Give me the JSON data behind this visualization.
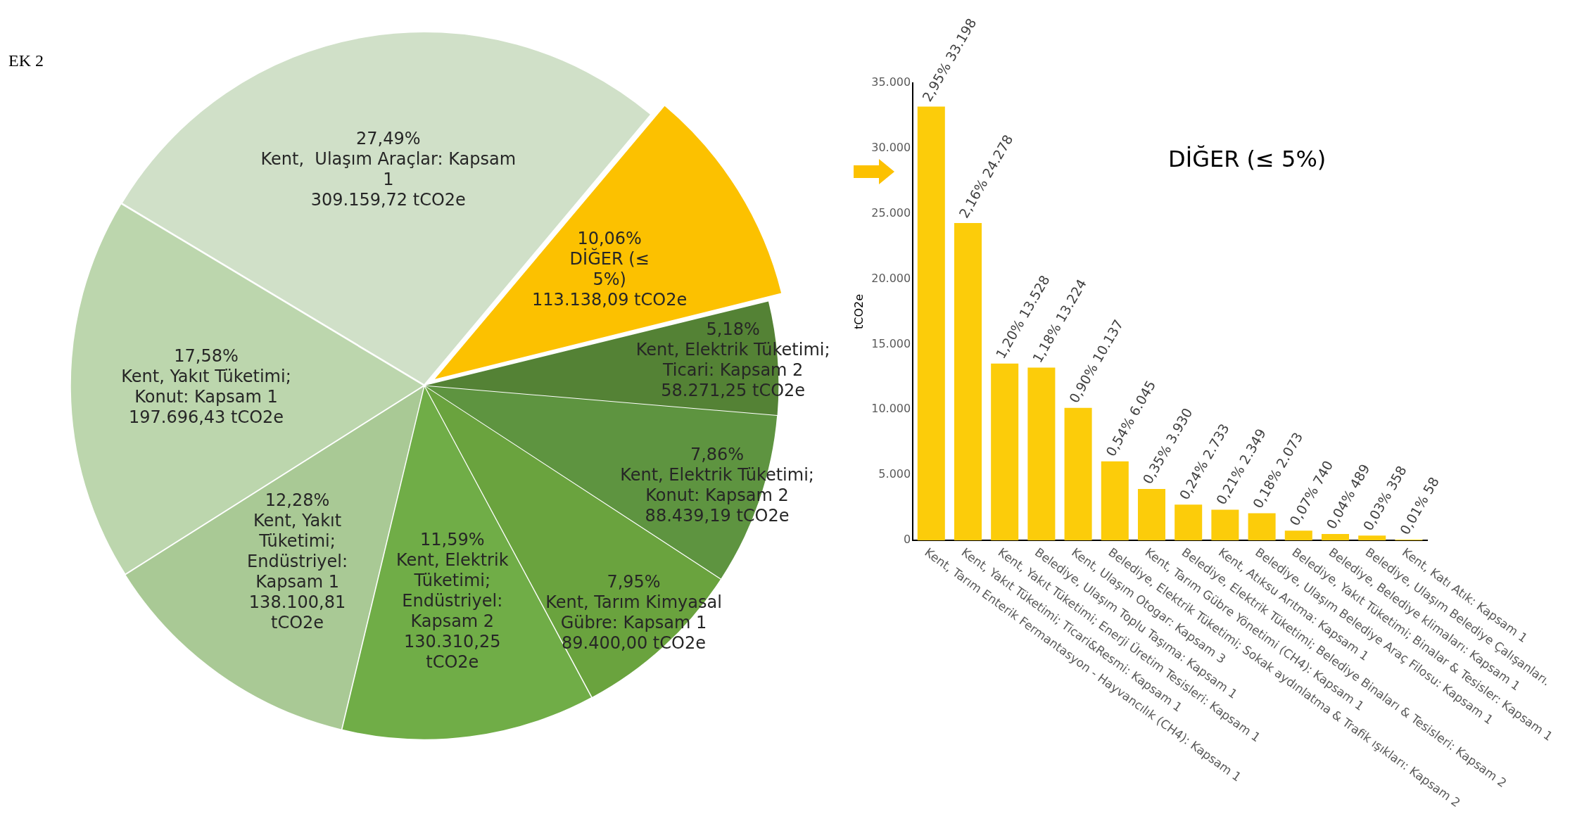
{
  "chart_data": [
    {
      "type": "pie",
      "annotations": [
        "EK 2"
      ],
      "categories": [
        "Kent,  Ulaşım Araçlar: Kapsam 1",
        "DİĞER (≤ 5%)",
        "Kent, Elektrik Tüketimi; Ticari: Kapsam 2",
        "Kent, Elektrik Tüketimi; Konut: Kapsam 2",
        "Kent, Tarım Kimyasal Gübre: Kapsam 1",
        "Kent, Elektrik Tüketimi; Endüstriyel: Kapsam 2",
        "Kent, Yakıt Tüketimi; Endüstriyel: Kapsam 1",
        "Kent, Yakıt Tüketimi; Konut: Kapsam 1"
      ],
      "values": [
        27.49,
        10.06,
        5.18,
        7.86,
        7.95,
        11.59,
        12.28,
        17.58
      ],
      "value_labels": [
        "27,49%\n309.159,72 tCO2e",
        "10,06%\n113.138,09 tCO2e",
        "5,18%\n58.271,25 tCO2e",
        "7,86%\n88.439,19 tCO2e",
        "7,95%\n89.400,00 tCO2e",
        "11,59%\n130.310,25\ntCO2e",
        "12,28%\n138.100,81\ntCO2e",
        "17,58%\n197.696,43 tCO2e"
      ],
      "colors": [
        "#d0e0c8",
        "#fcc100",
        "#548235",
        "#5e9440",
        "#6aa33e",
        "#70ad47",
        "#a9c995",
        "#bcd6ad"
      ]
    },
    {
      "type": "bar",
      "title": "DİĞER (≤ 5%)",
      "ylabel": "tCO2e",
      "categories": [
        "Kent, Tarım Enterik Fermantasyon - Hayvancılık (CH4): Kapsam 1",
        "Kent, Yakıt Tüketimi; Ticari&Resmi: Kapsam 1",
        "Kent, Yakıt Tüketimi; Enerji Üretim Tesisleri: Kapsam 1",
        "Belediye, Ulaşım Toplu Taşıma: Kapsam 1",
        "Kent, Ulaşım Otogar: Kapsam 3",
        "Belediye, Elektrik Tüketimi; Sokak aydınlatma & Trafik ışıkları: Kapsam 2",
        "Kent, Tarım Gübre Yönetimi (CH4): Kapsam 1",
        "Belediye, Elektrik Tüketimi; Belediye Binaları & Tesisleri: Kapsam 2",
        "Kent, Atıksu Arıtma: Kapsam 1",
        "Belediye, Ulaşım Belediye Araç Filosu: Kapsam 1",
        "Belediye, Yakıt Tüketimi; Binalar & Tesisler: Kapsam 1",
        "Belediye, Belediye klimaları: Kapsam 1",
        "Belediye, Ulaşım Belediye Çalışanları.",
        "Kent, Katı Atık: Kapsam 1"
      ],
      "values": [
        33198,
        24278,
        13528,
        13224,
        10137,
        6045,
        3930,
        2733,
        2349,
        2073,
        740,
        489,
        358,
        58
      ],
      "value_labels": [
        "2,95% 33.198",
        "2,16% 24.278",
        "1,20% 13.528",
        "1,18% 13.224",
        "0,90% 10.137",
        "0,54% 6.045",
        "0,35% 3.930",
        "0,24% 2.733",
        "0,21% 2.349",
        "0,18% 2.073",
        "0,07% 740",
        "0,04% 489",
        "0,03% 358",
        "0,01% 58"
      ],
      "color": "#fccc0a",
      "ylim": [
        0,
        35000
      ],
      "yticks": [
        {
          "value": 0,
          "label": "0"
        },
        {
          "value": 5000,
          "label": "5.000"
        },
        {
          "value": 10000,
          "label": "10.000"
        },
        {
          "value": 15000,
          "label": "15.000"
        },
        {
          "value": 20000,
          "label": "20.000"
        },
        {
          "value": 25000,
          "label": "25.000"
        },
        {
          "value": 30000,
          "label": "30.000"
        },
        {
          "value": 35000,
          "label": "35.000"
        }
      ],
      "grid": false
    }
  ]
}
